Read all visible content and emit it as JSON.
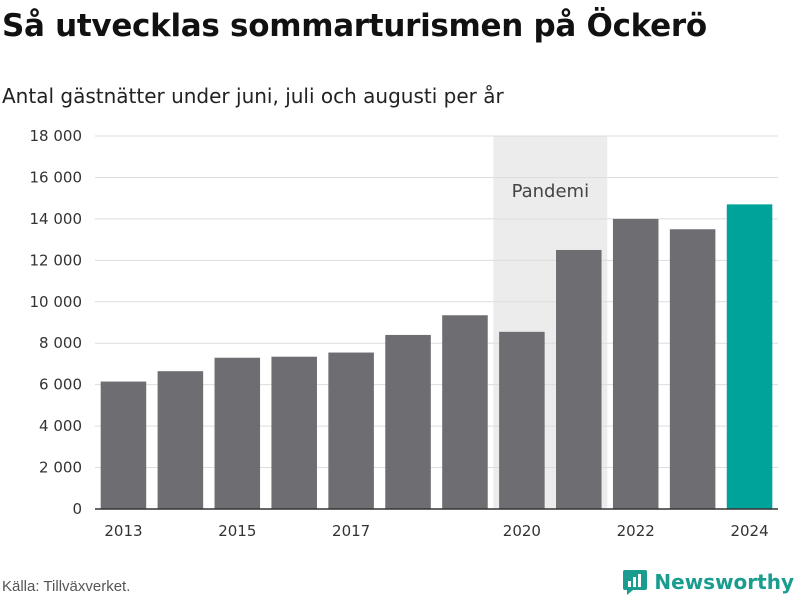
{
  "title": "Så utvecklas sommarturismen på Öckerö",
  "subtitle": "Antal gästnätter under juni, juli och augusti per år",
  "source": "Källa: Tillväxverket.",
  "brand": {
    "name": "Newsworthy",
    "icon": "newsworthy-logo-icon",
    "color": "#1a9c8f"
  },
  "colors": {
    "bar": "#6e6d72",
    "highlight": "#00a39a",
    "band": "#ececec",
    "grid": "#dddddd"
  },
  "chart_data": {
    "type": "bar",
    "title": "Så utvecklas sommarturismen på Öckerö",
    "subtitle": "Antal gästnätter under juni, juli och augusti per år",
    "xlabel": "",
    "ylabel": "",
    "categories": [
      "2013",
      "2014",
      "2015",
      "2016",
      "2017",
      "2018",
      "2019",
      "2020",
      "2021",
      "2022",
      "2023",
      "2024"
    ],
    "values": [
      6150,
      6650,
      7300,
      7350,
      7550,
      8400,
      9350,
      8550,
      12500,
      14000,
      13500,
      14700
    ],
    "highlight_category": "2024",
    "ylim": [
      0,
      18000
    ],
    "yticks": [
      0,
      2000,
      4000,
      6000,
      8000,
      10000,
      12000,
      14000,
      16000,
      18000
    ],
    "ytick_labels": [
      "0",
      "2 000",
      "4 000",
      "6 000",
      "8 000",
      "10 000",
      "12 000",
      "14 000",
      "16 000",
      "18 000"
    ],
    "xtick_labels": [
      "2013",
      "2015",
      "2017",
      "2020",
      "2022",
      "2024"
    ],
    "annotations": [
      {
        "text": "Pandemi",
        "from": "2020",
        "to": "2021"
      }
    ],
    "grid": true
  }
}
